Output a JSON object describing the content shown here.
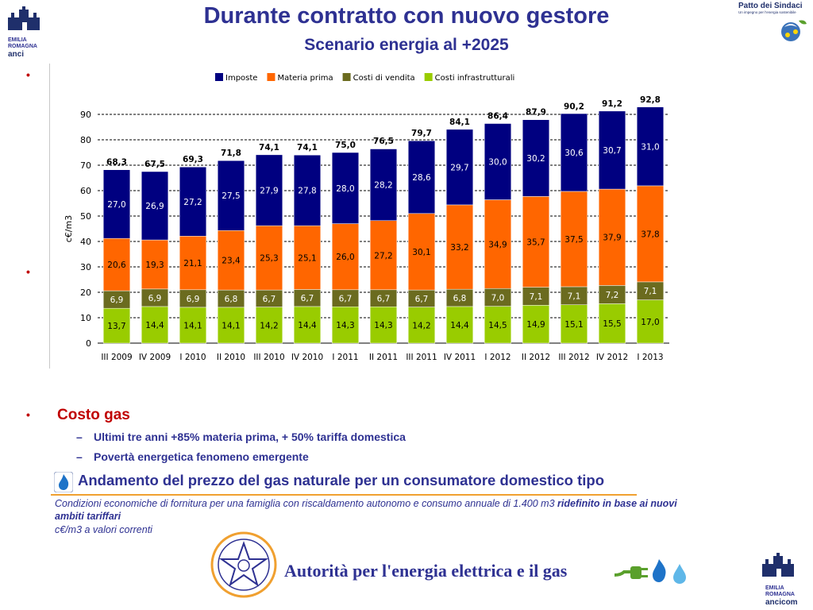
{
  "header": {
    "title": "Durante contratto con nuovo gestore",
    "subtitle": "Scenario energia al +2025"
  },
  "logos": {
    "top_left": {
      "line1": "EMILIA",
      "line2": "ROMAGNA",
      "line3": "anci"
    },
    "top_right": {
      "title": "Patto dei Sindaci",
      "tagline": "Un impegno per l'energia sostenibile"
    },
    "bottom_right": {
      "line1": "EMILIA",
      "line2": "ROMAGNA",
      "line3": "ancicom"
    }
  },
  "bullets": {
    "glyph": "•"
  },
  "chart_data": {
    "type": "bar",
    "stacked": true,
    "ylabel": "c€/m3",
    "ylim": [
      0,
      90
    ],
    "yticks": [
      0,
      10,
      20,
      30,
      40,
      50,
      60,
      70,
      80,
      90
    ],
    "grid": true,
    "legend_position": "top",
    "categories": [
      "III 2009",
      "IV 2009",
      "I 2010",
      "II 2010",
      "III 2010",
      "IV 2010",
      "I 2011",
      "II 2011",
      "III 2011",
      "IV 2011",
      "I 2012",
      "II 2012",
      "III 2012",
      "IV 2012",
      "I 2013"
    ],
    "series": [
      {
        "name": "Costi infrastrutturali",
        "color": "#99cc00",
        "labels": [
          "13,7",
          "14,4",
          "14,1",
          "14,1",
          "14,2",
          "14,4",
          "14,3",
          "14,3",
          "14,2",
          "14,4",
          "14,5",
          "14,9",
          "15,1",
          "15,5",
          "17,0"
        ],
        "values": [
          13.7,
          14.4,
          14.1,
          14.1,
          14.2,
          14.4,
          14.3,
          14.3,
          14.2,
          14.4,
          14.5,
          14.9,
          15.1,
          15.5,
          17.0
        ]
      },
      {
        "name": "Costi di vendita",
        "color": "#6b6b1f",
        "labels": [
          "6,9",
          "6,9",
          "6,9",
          "6,8",
          "6,7",
          "6,7",
          "6,7",
          "6,7",
          "6,7",
          "6,8",
          "7,0",
          "7,1",
          "7,1",
          "7,2",
          "7,1"
        ],
        "values": [
          6.9,
          6.9,
          6.9,
          6.8,
          6.7,
          6.7,
          6.7,
          6.7,
          6.7,
          6.8,
          7.0,
          7.1,
          7.1,
          7.2,
          7.1
        ]
      },
      {
        "name": "Materia prima",
        "color": "#ff6600",
        "labels": [
          "20,6",
          "19,3",
          "21,1",
          "23,4",
          "25,3",
          "25,1",
          "26,0",
          "27,2",
          "30,1",
          "33,2",
          "34,9",
          "35,7",
          "37,5",
          "37,9",
          "37,8"
        ],
        "values": [
          20.6,
          19.3,
          21.1,
          23.4,
          25.3,
          25.1,
          26.0,
          27.2,
          30.1,
          33.2,
          34.9,
          35.7,
          37.5,
          37.9,
          37.8
        ]
      },
      {
        "name": "Imposte",
        "color": "#000080",
        "labels": [
          "27,0",
          "26,9",
          "27,2",
          "27,5",
          "27,9",
          "27,8",
          "28,0",
          "28,2",
          "28,6",
          "29,7",
          "30,0",
          "30,2",
          "30,6",
          "30,7",
          "31,0"
        ],
        "values": [
          27.0,
          26.9,
          27.2,
          27.5,
          27.9,
          27.8,
          28.0,
          28.2,
          28.6,
          29.7,
          30.0,
          30.2,
          30.6,
          30.7,
          31.0
        ]
      }
    ],
    "totals": [
      "68,3",
      "67,5",
      "69,3",
      "71,8",
      "74,1",
      "74,1",
      "75,0",
      "76,5",
      "79,7",
      "84,1",
      "86,4",
      "87,9",
      "90,2",
      "91,2",
      "92,8"
    ],
    "totals_values": [
      68.3,
      67.5,
      69.3,
      71.8,
      74.1,
      74.1,
      75.0,
      76.5,
      79.7,
      84.1,
      86.4,
      87.9,
      90.2,
      91.2,
      92.8
    ]
  },
  "section": {
    "title": "Costo gas",
    "items": [
      {
        "dash": "–",
        "text": "Ultimi tre anni +85% materia prima, + 50% tariffa domestica"
      },
      {
        "dash": "–",
        "text": "Povertà energetica fenomeno emergente"
      }
    ]
  },
  "gas_panel": {
    "title": "Andamento del prezzo del gas naturale per un consumatore domestico tipo",
    "desc_plain": "Condizioni economiche di fornitura per una famiglia con riscaldamento autonomo e consumo annuale di 1.400 m3 ",
    "desc_bold": "ridefinito in base ai nuovi ambiti tariffari",
    "unit": "c€/m3 a valori correnti"
  },
  "authority": {
    "name": "Autorità per l'energia elettrica e il gas"
  },
  "colors": {
    "accent": "#2e3192",
    "bullet": "#c00000",
    "rule": "#f0a030"
  }
}
